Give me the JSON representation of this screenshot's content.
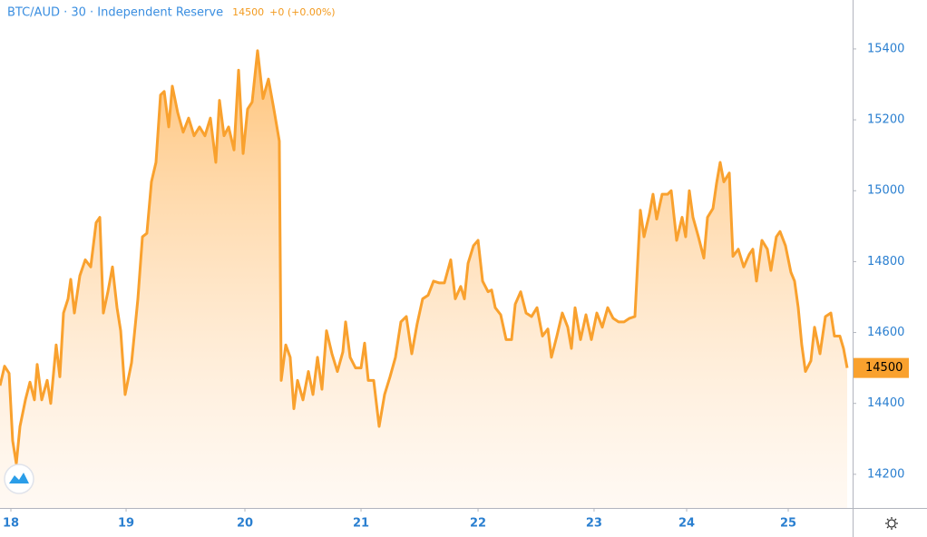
{
  "chart_data": {
    "type": "area",
    "title": "BTC/AUD · 30 · Independent Reserve",
    "last_price": 14500,
    "change_label": "+0 (+0.00%)",
    "color": "#f9a12e",
    "grid": false,
    "xlim": [
      17.902,
      25.582
    ],
    "ylim": [
      14105,
      15538
    ],
    "yticks": [
      14200,
      14400,
      14600,
      14800,
      15000,
      15200,
      15400
    ],
    "xticks": [
      {
        "value": 18.0,
        "label": "18"
      },
      {
        "value": 19.038,
        "label": "19"
      },
      {
        "value": 20.108,
        "label": "20"
      },
      {
        "value": 21.154,
        "label": "21"
      },
      {
        "value": 22.208,
        "label": "22"
      },
      {
        "value": 23.253,
        "label": "23"
      },
      {
        "value": 24.087,
        "label": "24"
      },
      {
        "value": 25.002,
        "label": "25"
      }
    ],
    "x": [
      17.902,
      17.943,
      17.984,
      18.016,
      18.049,
      18.082,
      18.131,
      18.172,
      18.212,
      18.237,
      18.278,
      18.327,
      18.359,
      18.408,
      18.441,
      18.474,
      18.515,
      18.539,
      18.572,
      18.621,
      18.67,
      18.719,
      18.768,
      18.801,
      18.833,
      18.874,
      18.915,
      18.956,
      18.989,
      19.029,
      19.087,
      19.144,
      19.185,
      19.225,
      19.266,
      19.307,
      19.348,
      19.381,
      19.422,
      19.454,
      19.503,
      19.552,
      19.601,
      19.65,
      19.699,
      19.748,
      19.797,
      19.846,
      19.879,
      19.92,
      19.961,
      20.01,
      20.051,
      20.092,
      20.132,
      20.173,
      20.222,
      20.271,
      20.32,
      20.369,
      20.418,
      20.435,
      20.476,
      20.516,
      20.549,
      20.582,
      20.631,
      20.68,
      20.721,
      20.762,
      20.802,
      20.843,
      20.892,
      20.941,
      20.99,
      21.015,
      21.056,
      21.105,
      21.154,
      21.186,
      21.219,
      21.268,
      21.317,
      21.366,
      21.415,
      21.464,
      21.513,
      21.562,
      21.611,
      21.66,
      21.709,
      21.758,
      21.807,
      21.856,
      21.905,
      21.962,
      22.003,
      22.052,
      22.085,
      22.118,
      22.167,
      22.208,
      22.249,
      22.298,
      22.33,
      22.363,
      22.412,
      22.461,
      22.51,
      22.543,
      22.592,
      22.641,
      22.69,
      22.739,
      22.788,
      22.837,
      22.869,
      22.918,
      22.967,
      23.016,
      23.049,
      23.082,
      23.131,
      23.18,
      23.229,
      23.278,
      23.327,
      23.376,
      23.425,
      23.474,
      23.523,
      23.572,
      23.621,
      23.67,
      23.703,
      23.752,
      23.784,
      23.817,
      23.866,
      23.915,
      23.948,
      23.997,
      24.046,
      24.078,
      24.111,
      24.144,
      24.193,
      24.242,
      24.275,
      24.324,
      24.356,
      24.389,
      24.422,
      24.471,
      24.504,
      24.552,
      24.601,
      24.65,
      24.683,
      24.716,
      24.765,
      24.814,
      24.846,
      24.895,
      24.928,
      24.977,
      25.026,
      25.059,
      25.092,
      25.124,
      25.157,
      25.206,
      25.239,
      25.288,
      25.337,
      25.386,
      25.418,
      25.467,
      25.5,
      25.533
    ],
    "values": [
      14450,
      14505,
      14485,
      14295,
      14230,
      14335,
      14410,
      14460,
      14410,
      14510,
      14410,
      14465,
      14400,
      14565,
      14475,
      14655,
      14695,
      14750,
      14655,
      14760,
      14805,
      14785,
      14910,
      14925,
      14655,
      14715,
      14785,
      14670,
      14605,
      14425,
      14515,
      14695,
      14870,
      14880,
      15025,
      15080,
      15270,
      15280,
      15180,
      15295,
      15220,
      15165,
      15205,
      15155,
      15180,
      15155,
      15205,
      15080,
      15255,
      15155,
      15180,
      15115,
      15340,
      15105,
      15230,
      15250,
      15395,
      15260,
      15315,
      15230,
      15140,
      14465,
      14565,
      14530,
      14385,
      14465,
      14410,
      14490,
      14425,
      14530,
      14440,
      14605,
      14540,
      14490,
      14545,
      14630,
      14530,
      14500,
      14500,
      14570,
      14465,
      14465,
      14335,
      14425,
      14475,
      14530,
      14630,
      14645,
      14540,
      14625,
      14695,
      14705,
      14745,
      14740,
      14740,
      14805,
      14695,
      14730,
      14695,
      14795,
      14845,
      14860,
      14745,
      14715,
      14720,
      14670,
      14650,
      14580,
      14580,
      14680,
      14715,
      14655,
      14645,
      14670,
      14590,
      14610,
      14530,
      14590,
      14655,
      14615,
      14555,
      14670,
      14580,
      14650,
      14580,
      14655,
      14615,
      14670,
      14640,
      14630,
      14630,
      14640,
      14645,
      14945,
      14870,
      14935,
      14990,
      14920,
      14990,
      14990,
      15000,
      14860,
      14925,
      14870,
      15000,
      14925,
      14870,
      14810,
      14925,
      14950,
      15020,
      15080,
      15025,
      15050,
      14815,
      14835,
      14785,
      14820,
      14835,
      14745,
      14860,
      14835,
      14775,
      14870,
      14885,
      14845,
      14770,
      14745,
      14670,
      14565,
      14490,
      14520,
      14615,
      14540,
      14645,
      14655,
      14590,
      14590,
      14555,
      14500
    ]
  }
}
